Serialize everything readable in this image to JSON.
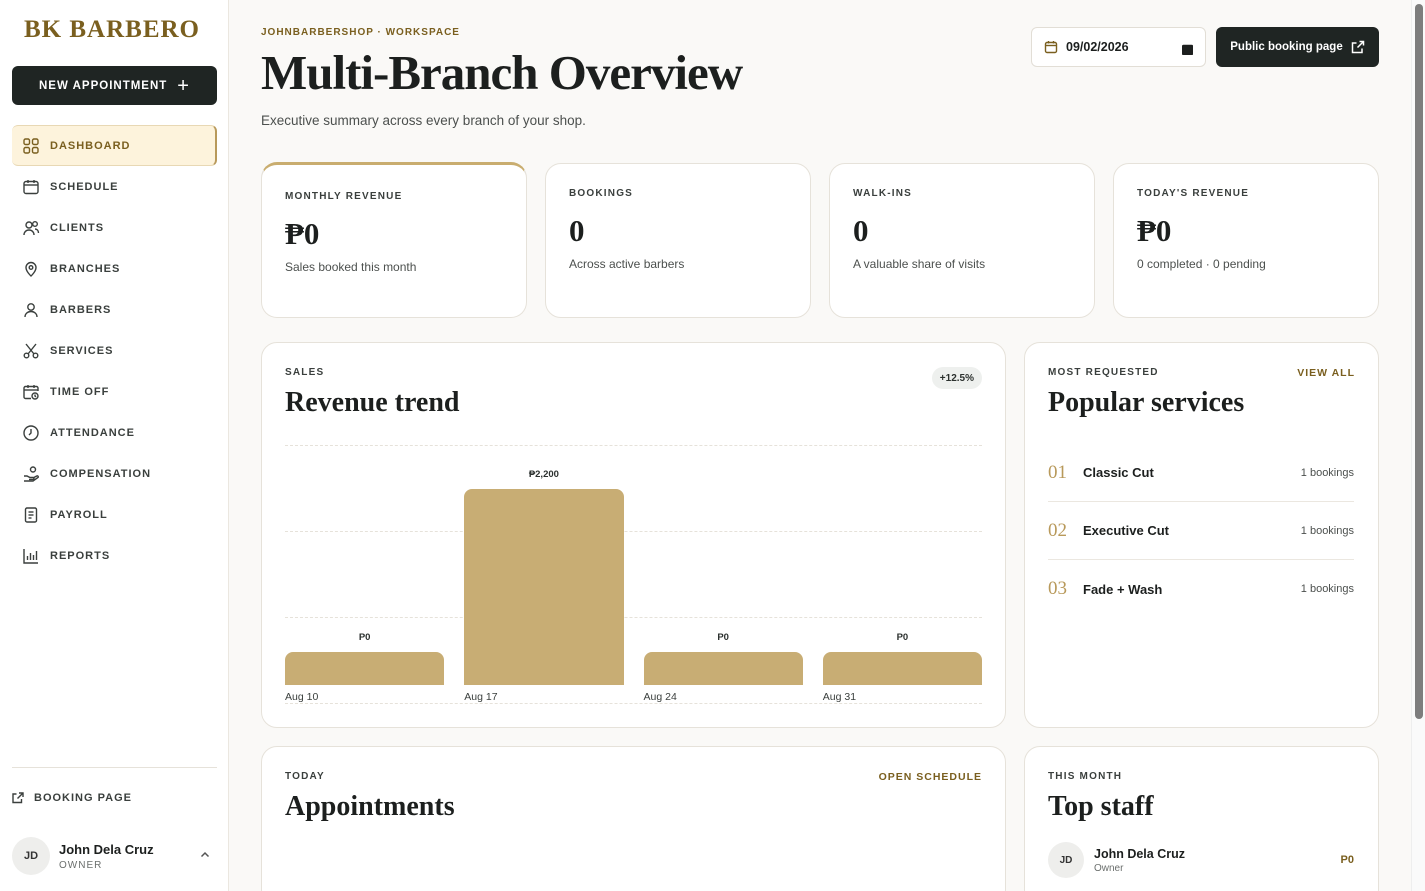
{
  "sidebar": {
    "brand": "BK BARBERO",
    "new_appointment": "NEW APPOINTMENT",
    "items": [
      {
        "label": "DASHBOARD",
        "icon": "dashboard-icon"
      },
      {
        "label": "SCHEDULE",
        "icon": "calendar-icon"
      },
      {
        "label": "CLIENTS",
        "icon": "users-icon"
      },
      {
        "label": "BRANCHES",
        "icon": "map-pin-icon"
      },
      {
        "label": "BARBERS",
        "icon": "user-icon"
      },
      {
        "label": "SERVICES",
        "icon": "scissors-icon"
      },
      {
        "label": "TIME OFF",
        "icon": "calendar-clock-icon"
      },
      {
        "label": "ATTENDANCE",
        "icon": "clock-icon"
      },
      {
        "label": "COMPENSATION",
        "icon": "hand-coins-icon"
      },
      {
        "label": "PAYROLL",
        "icon": "receipt-icon"
      },
      {
        "label": "REPORTS",
        "icon": "bar-chart-icon"
      }
    ],
    "booking_page": "BOOKING PAGE",
    "user": {
      "initials": "JD",
      "name": "John Dela Cruz",
      "role": "OWNER"
    }
  },
  "header": {
    "breadcrumb": "JOHNBARBERSHOP · WORKSPACE",
    "title": "Multi-Branch Overview",
    "subtitle": "Executive summary across every branch of your shop.",
    "date": "09/02/2026",
    "public_booking": "Public booking page"
  },
  "kpis": [
    {
      "label": "MONTHLY REVENUE",
      "value": "₱0",
      "sub": "Sales booked this month"
    },
    {
      "label": "BOOKINGS",
      "value": "0",
      "sub": "Across active barbers"
    },
    {
      "label": "WALK-INS",
      "value": "0",
      "sub": "A valuable share of visits"
    },
    {
      "label": "TODAY'S REVENUE",
      "value": "₱0",
      "sub": "0 completed · 0 pending"
    }
  ],
  "sales": {
    "label": "SALES",
    "title": "Revenue trend",
    "badge": "+12.5%"
  },
  "chart_data": {
    "type": "bar",
    "categories": [
      "Aug 10",
      "Aug 17",
      "Aug 24",
      "Aug 31"
    ],
    "values": [
      0,
      2200,
      0,
      0
    ],
    "value_labels": [
      "P0",
      "₱2,200",
      "P0",
      "P0"
    ],
    "title": "Revenue trend",
    "xlabel": "",
    "ylabel": "",
    "grid": true,
    "color": "#c8ad74"
  },
  "popular": {
    "label": "MOST REQUESTED",
    "title": "Popular services",
    "view_all": "VIEW ALL",
    "items": [
      {
        "num": "01",
        "name": "Classic Cut",
        "count": "1 bookings"
      },
      {
        "num": "02",
        "name": "Executive Cut",
        "count": "1 bookings"
      },
      {
        "num": "03",
        "name": "Fade + Wash",
        "count": "1 bookings"
      }
    ]
  },
  "appointments": {
    "label": "TODAY",
    "title": "Appointments",
    "link": "OPEN SCHEDULE"
  },
  "staff": {
    "label": "THIS MONTH",
    "title": "Top staff",
    "items": [
      {
        "initials": "JD",
        "name": "John Dela Cruz",
        "role": "Owner",
        "value": "P0"
      }
    ]
  },
  "colors": {
    "accent": "#7a5f1f",
    "bar": "#c8ad74",
    "dark": "#1f2523"
  }
}
